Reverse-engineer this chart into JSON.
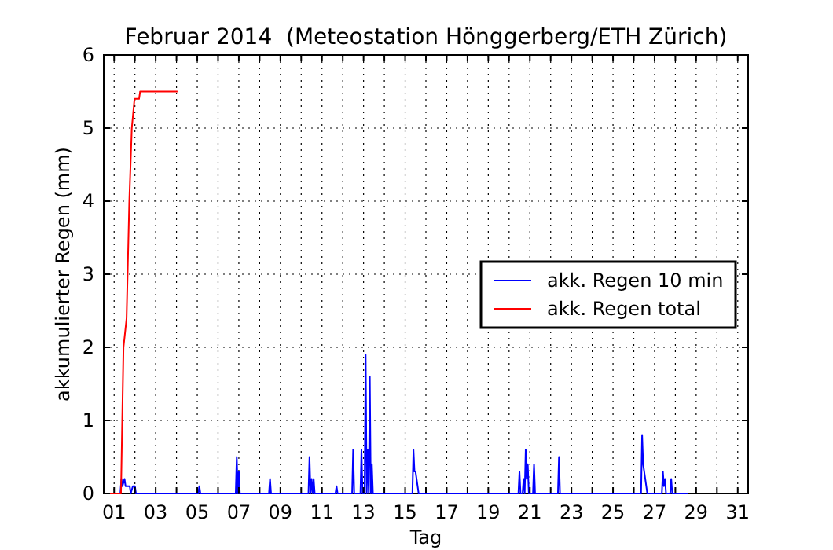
{
  "chart_data": {
    "type": "line",
    "title": "Februar 2014  (Meteostation Hönggerberg/ETH Zürich)",
    "xlabel": "Tag",
    "ylabel": "akkumulierter Regen (mm)",
    "xlim": [
      0.5,
      31.5
    ],
    "ylim": [
      0,
      6
    ],
    "xticks": [
      {
        "value": 1,
        "label": "01"
      },
      {
        "value": 2,
        "label": null
      },
      {
        "value": 3,
        "label": "03"
      },
      {
        "value": 4,
        "label": null
      },
      {
        "value": 5,
        "label": "05"
      },
      {
        "value": 6,
        "label": null
      },
      {
        "value": 7,
        "label": "07"
      },
      {
        "value": 8,
        "label": null
      },
      {
        "value": 9,
        "label": "09"
      },
      {
        "value": 10,
        "label": null
      },
      {
        "value": 11,
        "label": "11"
      },
      {
        "value": 12,
        "label": null
      },
      {
        "value": 13,
        "label": "13"
      },
      {
        "value": 14,
        "label": null
      },
      {
        "value": 15,
        "label": "15"
      },
      {
        "value": 16,
        "label": null
      },
      {
        "value": 17,
        "label": "17"
      },
      {
        "value": 18,
        "label": null
      },
      {
        "value": 19,
        "label": "19"
      },
      {
        "value": 20,
        "label": null
      },
      {
        "value": 21,
        "label": "21"
      },
      {
        "value": 22,
        "label": null
      },
      {
        "value": 23,
        "label": "23"
      },
      {
        "value": 24,
        "label": null
      },
      {
        "value": 25,
        "label": "25"
      },
      {
        "value": 26,
        "label": null
      },
      {
        "value": 27,
        "label": "27"
      },
      {
        "value": 28,
        "label": null
      },
      {
        "value": 29,
        "label": "29"
      },
      {
        "value": 30,
        "label": null
      },
      {
        "value": 31,
        "label": "31"
      }
    ],
    "yticks": [
      0,
      1,
      2,
      3,
      4,
      5,
      6
    ],
    "grid": true,
    "legend": "right",
    "marker": "none",
    "line_style": "solid",
    "series": [
      {
        "name": "akk. Regen 10 min",
        "color": "#0000ff",
        "x": [
          1.3,
          1.35,
          1.4,
          1.5,
          1.55,
          1.6,
          1.7,
          1.75,
          1.8,
          1.9,
          2.0,
          2.05,
          2.1,
          5.05,
          5.1,
          5.15,
          6.85,
          6.9,
          6.95,
          7.0,
          7.05,
          8.45,
          8.5,
          8.55,
          10.35,
          10.4,
          10.45,
          10.5,
          10.55,
          10.6,
          10.65,
          11.65,
          11.7,
          11.75,
          12.45,
          12.5,
          12.55,
          12.85,
          12.9,
          12.95,
          13.05,
          13.1,
          13.15,
          13.2,
          13.25,
          13.3,
          13.35,
          13.4,
          13.45,
          15.35,
          15.4,
          15.45,
          15.5,
          15.55,
          15.6,
          15.65,
          20.45,
          20.5,
          20.55,
          20.65,
          20.7,
          20.75,
          20.8,
          20.85,
          20.9,
          20.95,
          21.15,
          21.2,
          21.25,
          22.35,
          22.4,
          22.45,
          26.35,
          26.4,
          26.45,
          26.5,
          26.55,
          26.6,
          26.65,
          27.35,
          27.4,
          27.45,
          27.5,
          27.55,
          27.75,
          27.8,
          27.85,
          28.6
        ],
        "values": [
          0,
          0.2,
          0.1,
          0.2,
          0.1,
          0.1,
          0.1,
          0.1,
          0,
          0.1,
          0.1,
          0,
          0,
          0,
          0.1,
          0,
          0,
          0.5,
          0,
          0.3,
          0,
          0,
          0.2,
          0,
          0,
          0.5,
          0,
          0.2,
          0,
          0.2,
          0,
          0,
          0.1,
          0,
          0,
          0.6,
          0,
          0,
          0.6,
          0,
          0,
          1.9,
          0,
          0.6,
          0,
          1.6,
          0,
          0.4,
          0,
          0,
          0.6,
          0.3,
          0.3,
          0.2,
          0.1,
          0,
          0,
          0.3,
          0,
          0,
          0.2,
          0,
          0.6,
          0.2,
          0.4,
          0,
          0,
          0.4,
          0,
          0,
          0.5,
          0,
          0,
          0.8,
          0.4,
          0.3,
          0.2,
          0.1,
          0,
          0,
          0.3,
          0.1,
          0.2,
          0,
          0,
          0.2,
          0,
          0
        ]
      },
      {
        "name": "akk. Regen total",
        "color": "#ff0000",
        "x": [
          0.5,
          1.33,
          1.45,
          1.6,
          1.73,
          1.85,
          1.98,
          2.2,
          2.25,
          4.05
        ],
        "values": [
          0,
          0,
          2.0,
          2.4,
          4.0,
          5.0,
          5.4,
          5.4,
          5.5,
          5.5
        ]
      }
    ]
  }
}
